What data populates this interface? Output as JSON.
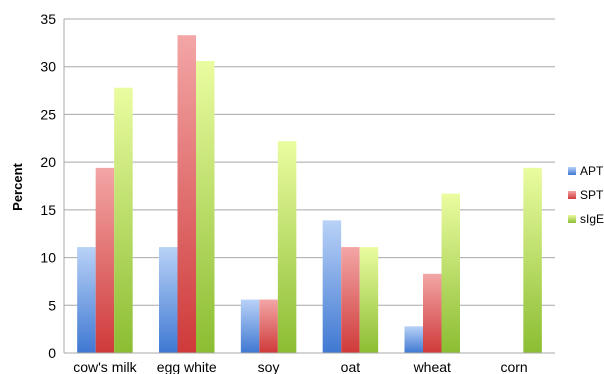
{
  "chart_data": {
    "type": "bar",
    "title": "",
    "xlabel": "",
    "ylabel": "Percent",
    "ylim": [
      0,
      35
    ],
    "yticks": [
      0,
      5,
      10,
      15,
      20,
      25,
      30,
      35
    ],
    "grid": "horizontal",
    "legend_position": "right",
    "categories": [
      "cow's milk",
      "egg white",
      "soy",
      "oat",
      "wheat",
      "corn"
    ],
    "series": [
      {
        "name": "APT",
        "color": "#4a7fd6",
        "values": [
          11.1,
          11.1,
          5.6,
          13.9,
          2.8,
          0
        ]
      },
      {
        "name": "SPT",
        "color": "#d84848",
        "values": [
          19.4,
          33.3,
          5.6,
          11.1,
          8.3,
          0
        ]
      },
      {
        "name": "sIgE",
        "color": "#94c43c",
        "values": [
          27.8,
          30.6,
          22.2,
          11.1,
          16.7,
          19.4
        ]
      }
    ]
  }
}
